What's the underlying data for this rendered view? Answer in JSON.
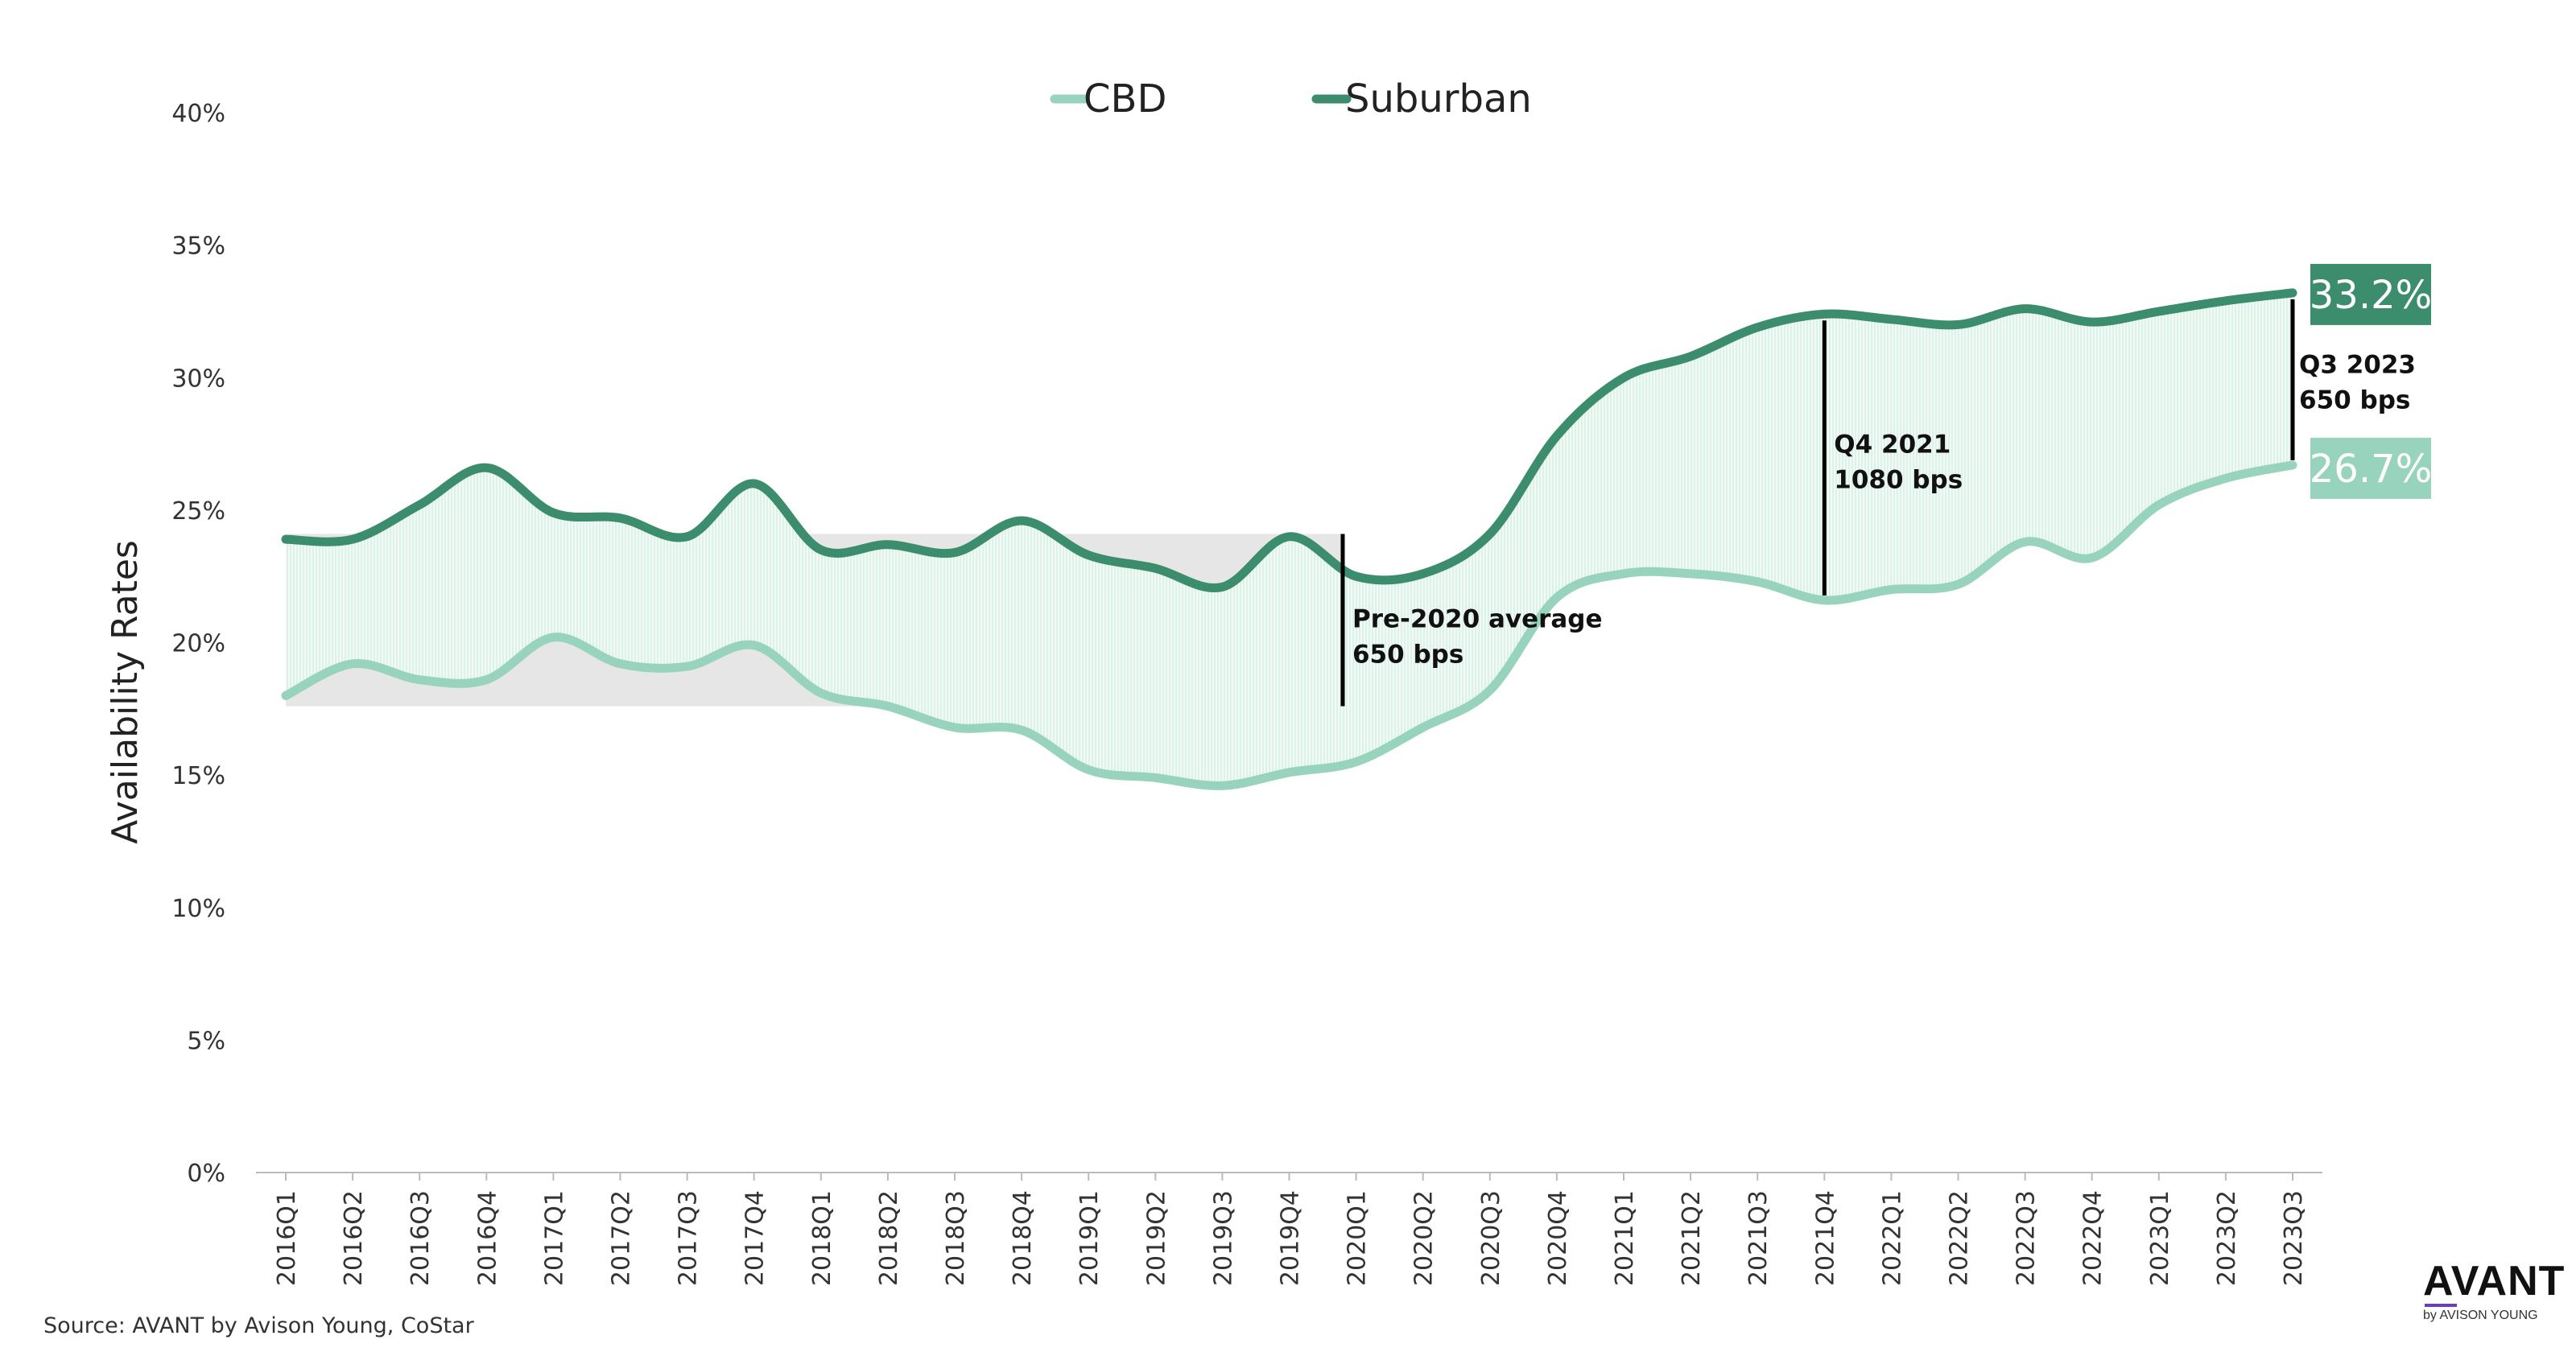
{
  "chart_data": {
    "type": "line",
    "ylabel": "Availability Rates",
    "ylim": [
      0,
      40
    ],
    "yticks": [
      "0%",
      "5%",
      "10%",
      "15%",
      "20%",
      "25%",
      "30%",
      "35%",
      "40%"
    ],
    "categories": [
      "2016Q1",
      "2016Q2",
      "2016Q3",
      "2016Q4",
      "2017Q1",
      "2017Q2",
      "2017Q3",
      "2017Q4",
      "2018Q1",
      "2018Q2",
      "2018Q3",
      "2018Q4",
      "2019Q1",
      "2019Q2",
      "2019Q3",
      "2019Q4",
      "2020Q1",
      "2020Q2",
      "2020Q3",
      "2020Q4",
      "2021Q1",
      "2021Q2",
      "2021Q3",
      "2021Q4",
      "2022Q1",
      "2022Q2",
      "2022Q3",
      "2022Q4",
      "2023Q1",
      "2023Q2",
      "2023Q3"
    ],
    "series": [
      {
        "name": "CBD",
        "color": "#98d4bd",
        "values": [
          18.0,
          19.2,
          18.6,
          18.6,
          20.2,
          19.2,
          19.1,
          19.9,
          18.1,
          17.6,
          16.8,
          16.7,
          15.2,
          14.9,
          14.6,
          15.1,
          15.5,
          16.8,
          18.2,
          21.7,
          22.6,
          22.6,
          22.3,
          21.6,
          22.0,
          22.2,
          23.8,
          23.2,
          25.2,
          26.2,
          26.7
        ]
      },
      {
        "name": "Suburban",
        "color": "#3c8c6e",
        "values": [
          23.9,
          23.9,
          25.2,
          26.6,
          24.9,
          24.7,
          24.0,
          26.0,
          23.5,
          23.7,
          23.4,
          24.6,
          23.3,
          22.8,
          22.1,
          24.0,
          22.5,
          22.6,
          24.1,
          27.8,
          30.0,
          30.8,
          31.9,
          32.4,
          32.2,
          32.0,
          32.6,
          32.1,
          32.5,
          32.9,
          33.2
        ]
      }
    ],
    "pre2020_band": {
      "from": 17.6,
      "to": 24.1,
      "categories": [
        "2016Q1",
        "2020Q1"
      ]
    },
    "annotations": [
      {
        "text": [
          "Pre-2020 average",
          "650 bps"
        ],
        "category": "2019Q4"
      },
      {
        "text": [
          "Q4 2021",
          "1080 bps"
        ],
        "category": "2021Q4"
      },
      {
        "text": [
          "Q3 2023",
          "650 bps"
        ],
        "category": "2023Q3"
      }
    ],
    "end_labels": [
      {
        "series": "Suburban",
        "text": "33.2%",
        "color": "#3c8c6e"
      },
      {
        "series": "CBD",
        "text": "26.7%",
        "color": "#98d4bd"
      }
    ],
    "legend": "top-center",
    "grid": false
  },
  "source": "Source: AVANT by Avison Young, CoStar",
  "logo": {
    "main": "AVANT",
    "sub": "by AVISON YOUNG"
  }
}
